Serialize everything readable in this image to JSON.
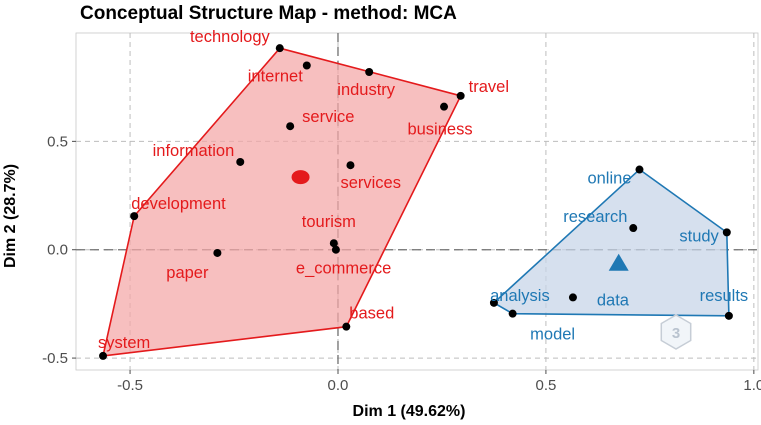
{
  "chart_data": {
    "type": "scatter",
    "title": "Conceptual Structure Map - method: MCA",
    "xlabel": "Dim 1 (49.62%)",
    "ylabel": "Dim 2 (28.7%)",
    "xlim": [
      -0.63,
      1.01
    ],
    "ylim": [
      -0.555,
      1.0
    ],
    "xticks": [
      -0.5,
      0.0,
      0.5,
      1.0
    ],
    "xtick_labels": [
      "-0.5",
      "0.0",
      "0.5",
      "1.0"
    ],
    "yticks": [
      -0.5,
      0.0,
      0.5
    ],
    "ytick_labels": [
      "-0.5",
      "0.0",
      "0.5"
    ],
    "grid": true,
    "reference_lines": {
      "x": 0,
      "y": 0
    },
    "clusters": [
      {
        "color": "#e41a1c",
        "fill": "#f4a6a6",
        "centroid": {
          "x": -0.09,
          "y": 0.335,
          "marker": "circle"
        },
        "hull": [
          "technology",
          "travel",
          "based",
          "system",
          "development"
        ],
        "points": [
          {
            "label": "technology",
            "x": -0.14,
            "y": 0.93
          },
          {
            "label": "internet",
            "x": -0.075,
            "y": 0.85
          },
          {
            "label": "industry",
            "x": 0.075,
            "y": 0.82
          },
          {
            "label": "travel",
            "x": 0.295,
            "y": 0.71
          },
          {
            "label": "business",
            "x": 0.255,
            "y": 0.66
          },
          {
            "label": "service",
            "x": -0.115,
            "y": 0.57
          },
          {
            "label": "information",
            "x": -0.235,
            "y": 0.405
          },
          {
            "label": "services",
            "x": 0.03,
            "y": 0.39
          },
          {
            "label": "development",
            "x": -0.49,
            "y": 0.155
          },
          {
            "label": "tourism",
            "x": -0.01,
            "y": 0.03
          },
          {
            "label": "e_commerce",
            "x": -0.005,
            "y": 0.0
          },
          {
            "label": "paper",
            "x": -0.29,
            "y": -0.015
          },
          {
            "label": "based",
            "x": 0.02,
            "y": -0.355
          },
          {
            "label": "system",
            "x": -0.565,
            "y": -0.49
          }
        ]
      },
      {
        "color": "#1f78b4",
        "fill": "#c6d4e8",
        "centroid": {
          "x": 0.675,
          "y": -0.06,
          "marker": "triangle"
        },
        "hull": [
          "online",
          "study",
          "results",
          "model",
          "analysis"
        ],
        "points": [
          {
            "label": "online",
            "x": 0.725,
            "y": 0.37
          },
          {
            "label": "research",
            "x": 0.71,
            "y": 0.1
          },
          {
            "label": "study",
            "x": 0.935,
            "y": 0.08
          },
          {
            "label": "data",
            "x": 0.565,
            "y": -0.22
          },
          {
            "label": "analysis",
            "x": 0.375,
            "y": -0.245
          },
          {
            "label": "model",
            "x": 0.42,
            "y": -0.295
          },
          {
            "label": "results",
            "x": 0.94,
            "y": -0.305
          }
        ]
      }
    ]
  },
  "watermark": {
    "glyph": "3",
    "name": "bibliometrix-logo"
  }
}
